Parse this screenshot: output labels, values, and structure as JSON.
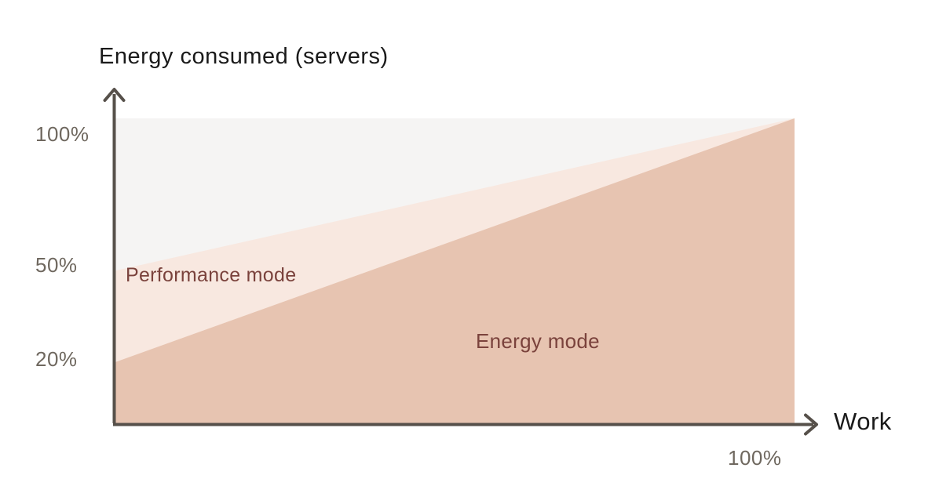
{
  "chart_data": {
    "type": "area",
    "title": "Energy consumed (servers)",
    "xlabel": "Work",
    "ylabel": "Energy consumed (servers)",
    "x_range": [
      0,
      100
    ],
    "y_range": [
      0,
      100
    ],
    "x_ticks": [
      {
        "value": 100,
        "label": "100%"
      }
    ],
    "y_ticks": [
      {
        "value": 100,
        "label": "100%"
      },
      {
        "value": 50,
        "label": "50%"
      },
      {
        "value": 20,
        "label": "20%"
      }
    ],
    "grid": false,
    "legend": "labels-inside-areas",
    "plot_background": "#f5f4f3",
    "axis_color": "#56504a",
    "tick_label_color": "#6f685f",
    "title_color": "#1a1a1a",
    "area_label_color": "#7a423c",
    "series": [
      {
        "name": "Performance mode",
        "x": [
          0,
          100
        ],
        "y": [
          50,
          100
        ],
        "color": "#f8e8e0"
      },
      {
        "name": "Energy mode",
        "x": [
          0,
          100
        ],
        "y": [
          20,
          100
        ],
        "color": "#e7c4b1"
      }
    ]
  }
}
